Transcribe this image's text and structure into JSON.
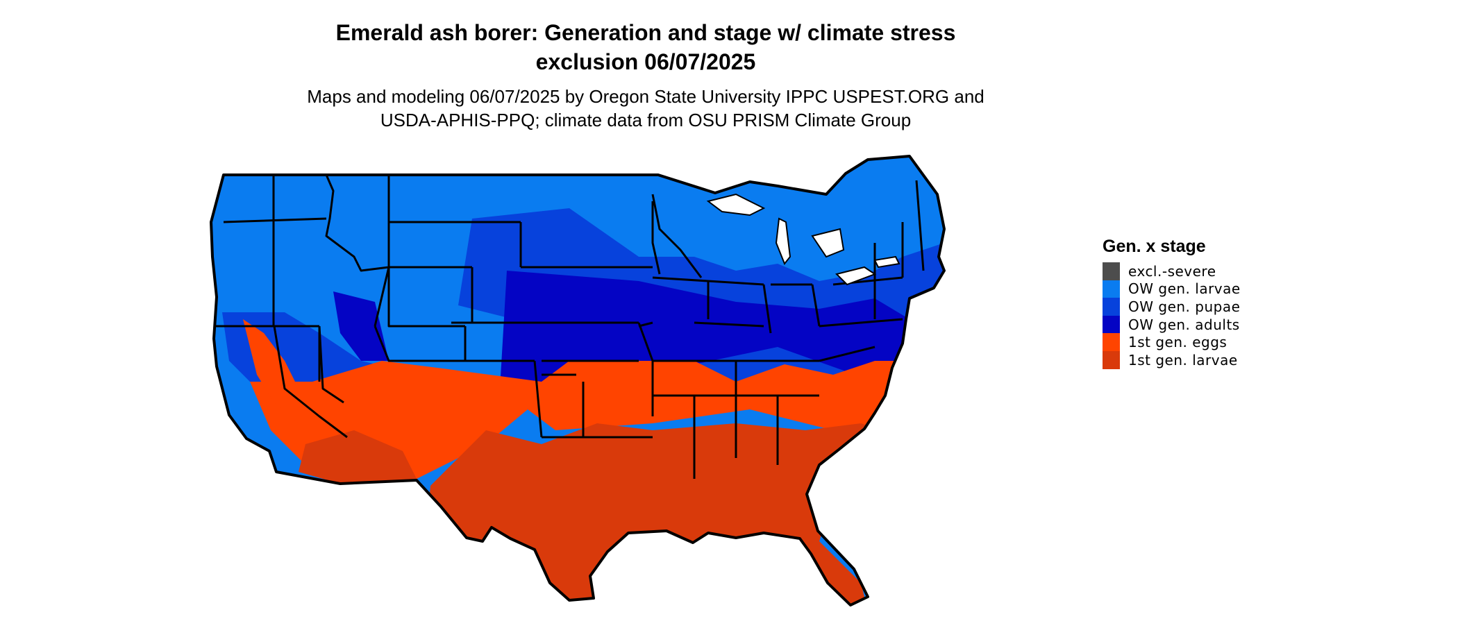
{
  "title": {
    "line1": "Emerald ash borer: Generation and stage w/ climate stress",
    "line2": "exclusion 06/07/2025"
  },
  "subtitle": {
    "line1": "Maps and modeling 06/07/2025 by Oregon State University IPPC USPEST.ORG and",
    "line2": "USDA-APHIS-PPQ; climate data from OSU PRISM Climate Group"
  },
  "legend": {
    "title": "Gen. x stage",
    "items": [
      {
        "label": "excl.-severe",
        "color": "#4d4d4d"
      },
      {
        "label": "OW gen. larvae",
        "color": "#0a7cf0"
      },
      {
        "label": "OW gen. pupae",
        "color": "#0742dc"
      },
      {
        "label": "OW gen. adults",
        "color": "#0404c4"
      },
      {
        "label": "1st gen. eggs",
        "color": "#ff4400"
      },
      {
        "label": "1st gen. larvae",
        "color": "#d93a0b"
      }
    ]
  },
  "map": {
    "region": "conterminous-united-states",
    "border_color": "#000000"
  }
}
